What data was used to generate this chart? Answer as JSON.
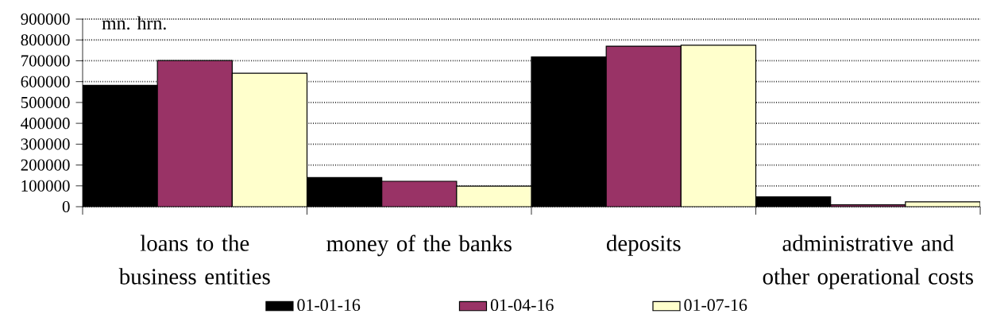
{
  "chart_data": {
    "type": "bar",
    "ylabel": "mn. hrn.",
    "categories": [
      "loans to the business entities",
      "money of the banks",
      "deposits",
      "administrative and other operational costs"
    ],
    "series": [
      {
        "name": "01-01-16",
        "color": "#000000",
        "values": [
          582000,
          140000,
          719000,
          47000
        ]
      },
      {
        "name": "01-04-16",
        "color": "#993366",
        "values": [
          701000,
          122000,
          770000,
          9000
        ]
      },
      {
        "name": "01-07-16",
        "color": "#ffffcc",
        "values": [
          640000,
          99000,
          775000,
          23000
        ]
      }
    ],
    "ylim": [
      0,
      900000
    ],
    "yticks": [
      0,
      100000,
      200000,
      300000,
      400000,
      500000,
      600000,
      700000,
      800000,
      900000
    ],
    "grid": "y",
    "legend": "bottom"
  }
}
